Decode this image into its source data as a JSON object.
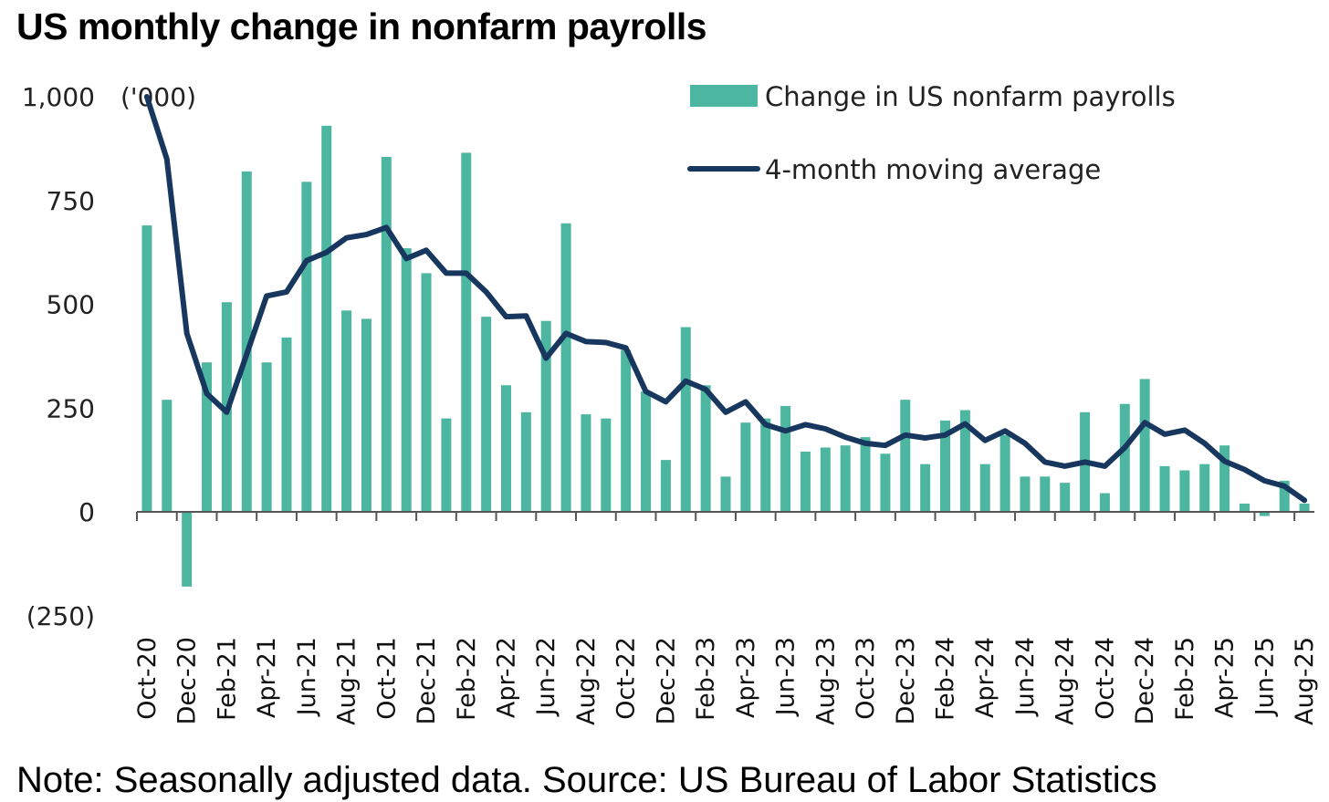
{
  "title": "US monthly change in nonfarm payrolls",
  "note": "Note: Seasonally adjusted data. Source: US Bureau of Labor Statistics",
  "colors": {
    "bar": "#4DB6A0",
    "line": "#17375E",
    "axis": "#555555"
  },
  "chart_data": {
    "type": "bar",
    "unit_label": "('000)",
    "ylim": [
      -250,
      1000
    ],
    "yticks": [
      1000,
      750,
      500,
      250,
      0,
      -250
    ],
    "ytick_labels": [
      "1,000",
      "750",
      "500",
      "250",
      "0",
      "(250)"
    ],
    "categories": [
      "Oct-20",
      "Nov-20",
      "Dec-20",
      "Jan-21",
      "Feb-21",
      "Mar-21",
      "Apr-21",
      "May-21",
      "Jun-21",
      "Jul-21",
      "Aug-21",
      "Sep-21",
      "Oct-21",
      "Nov-21",
      "Dec-21",
      "Jan-22",
      "Feb-22",
      "Mar-22",
      "Apr-22",
      "May-22",
      "Jun-22",
      "Jul-22",
      "Aug-22",
      "Sep-22",
      "Oct-22",
      "Nov-22",
      "Dec-22",
      "Jan-23",
      "Feb-23",
      "Mar-23",
      "Apr-23",
      "May-23",
      "Jun-23",
      "Jul-23",
      "Aug-23",
      "Sep-23",
      "Oct-23",
      "Nov-23",
      "Dec-23",
      "Jan-24",
      "Feb-24",
      "Mar-24",
      "Apr-24",
      "May-24",
      "Jun-24",
      "Jul-24",
      "Aug-24",
      "Sep-24",
      "Oct-24",
      "Nov-24",
      "Dec-24",
      "Jan-25",
      "Feb-25",
      "Mar-25",
      "Apr-25",
      "May-25",
      "Jun-25",
      "Jul-25",
      "Aug-25"
    ],
    "xtick_labels": [
      "Oct-20",
      "Dec-20",
      "Feb-21",
      "Apr-21",
      "Jun-21",
      "Aug-21",
      "Oct-21",
      "Dec-21",
      "Feb-22",
      "Apr-22",
      "Jun-22",
      "Aug-22",
      "Oct-22",
      "Dec-22",
      "Feb-23",
      "Apr-23",
      "Jun-23",
      "Aug-23",
      "Oct-23",
      "Dec-23",
      "Feb-24",
      "Apr-24",
      "Jun-24",
      "Aug-24",
      "Oct-24",
      "Dec-24",
      "Feb-25",
      "Apr-25",
      "Jun-25",
      "Aug-25"
    ],
    "series": [
      {
        "name": "Change in US nonfarm payrolls",
        "type": "bar",
        "values": [
          690,
          270,
          -180,
          360,
          505,
          820,
          360,
          420,
          795,
          930,
          485,
          465,
          855,
          635,
          575,
          225,
          865,
          470,
          305,
          240,
          460,
          695,
          235,
          225,
          390,
          290,
          125,
          445,
          305,
          85,
          215,
          225,
          255,
          145,
          155,
          160,
          180,
          140,
          270,
          115,
          220,
          245,
          115,
          185,
          85,
          85,
          70,
          240,
          45,
          260,
          320,
          110,
          100,
          115,
          160,
          20,
          -10,
          75,
          20
        ]
      },
      {
        "name": "4-month moving average",
        "type": "line",
        "values": [
          1000,
          850,
          430,
          285,
          240,
          380,
          520,
          530,
          605,
          625,
          660,
          668,
          685,
          610,
          630,
          575,
          575,
          530,
          470,
          472,
          370,
          430,
          410,
          408,
          395,
          290,
          265,
          315,
          295,
          240,
          265,
          210,
          195,
          210,
          200,
          180,
          165,
          160,
          185,
          178,
          185,
          212,
          172,
          195,
          165,
          120,
          110,
          120,
          110,
          155,
          215,
          187,
          197,
          165,
          122,
          102,
          75,
          62,
          28
        ]
      }
    ]
  }
}
